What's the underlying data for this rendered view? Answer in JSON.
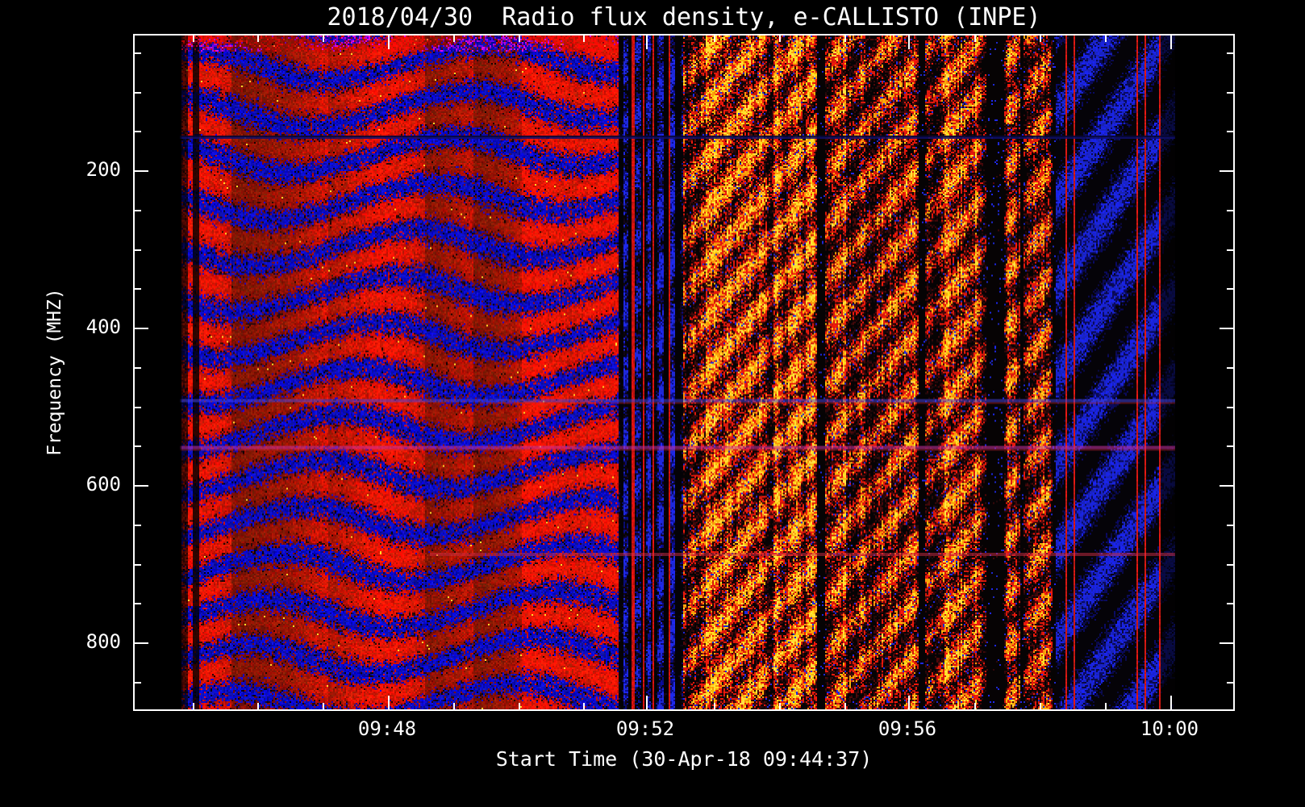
{
  "page": {
    "background": "#000000",
    "foreground": "#ffffff"
  },
  "chart_data": {
    "type": "heatmap",
    "subtype": "radio-spectrogram",
    "title": "2018/04/30  Radio flux density, e-CALLISTO (INPE)",
    "xlabel": "Start Time (30-Apr-18 09:44:37)",
    "ylabel": "Frequency (MHZ)",
    "date": "2018/04/30",
    "instrument": "e-CALLISTO (INPE)",
    "x_ticks": [
      "09:48",
      "09:52",
      "09:56",
      "10:00"
    ],
    "y_ticks": [
      "200",
      "400",
      "600",
      "800"
    ],
    "x_axis": {
      "start_time": "09:44:37",
      "end_time": "10:00:30",
      "date": "30-Apr-18",
      "minutes_per_major_tick": 4
    },
    "y_axis": {
      "direction": "inverted",
      "min_mhz": 45,
      "max_mhz": 870,
      "mhz_per_major_tick": 200
    },
    "legend": "none",
    "grid": "off",
    "palette": {
      "strong_signal": "#ffdd33",
      "medium_signal": "#ff8800",
      "low_signal": "#cc1100",
      "negative_signal": "#2233dd",
      "background": "#000000"
    },
    "features": [
      {
        "time": "09:45-09:51",
        "description": "broadband red emission with undulating horizontal blue interference bands across 45-870 MHz"
      },
      {
        "time": "09:51-09:52",
        "description": "dark vertical absorption stripes with faint blue diagonal ripple"
      },
      {
        "time": "09:52-09:58",
        "description": "chaotic bright orange/yellow diagonal striations interleaved with black vertical gaps and blue specks"
      },
      {
        "time": "09:58-10:00",
        "description": "predominantly blue/black noise with sparse red vertical streaks, fading to black at right edge"
      },
      {
        "frequency_mhz": 165,
        "description": "narrowband horizontal interference line (dark blue), full duration"
      },
      {
        "frequency_mhz": 500,
        "description": "narrowband horizontal interference line (blue with red tinge)"
      },
      {
        "frequency_mhz": 560,
        "description": "narrowband horizontal interference line (magenta/red), full duration"
      },
      {
        "frequency_mhz": 690,
        "description": "narrowband horizontal interference line (red), mainly second half"
      }
    ]
  }
}
